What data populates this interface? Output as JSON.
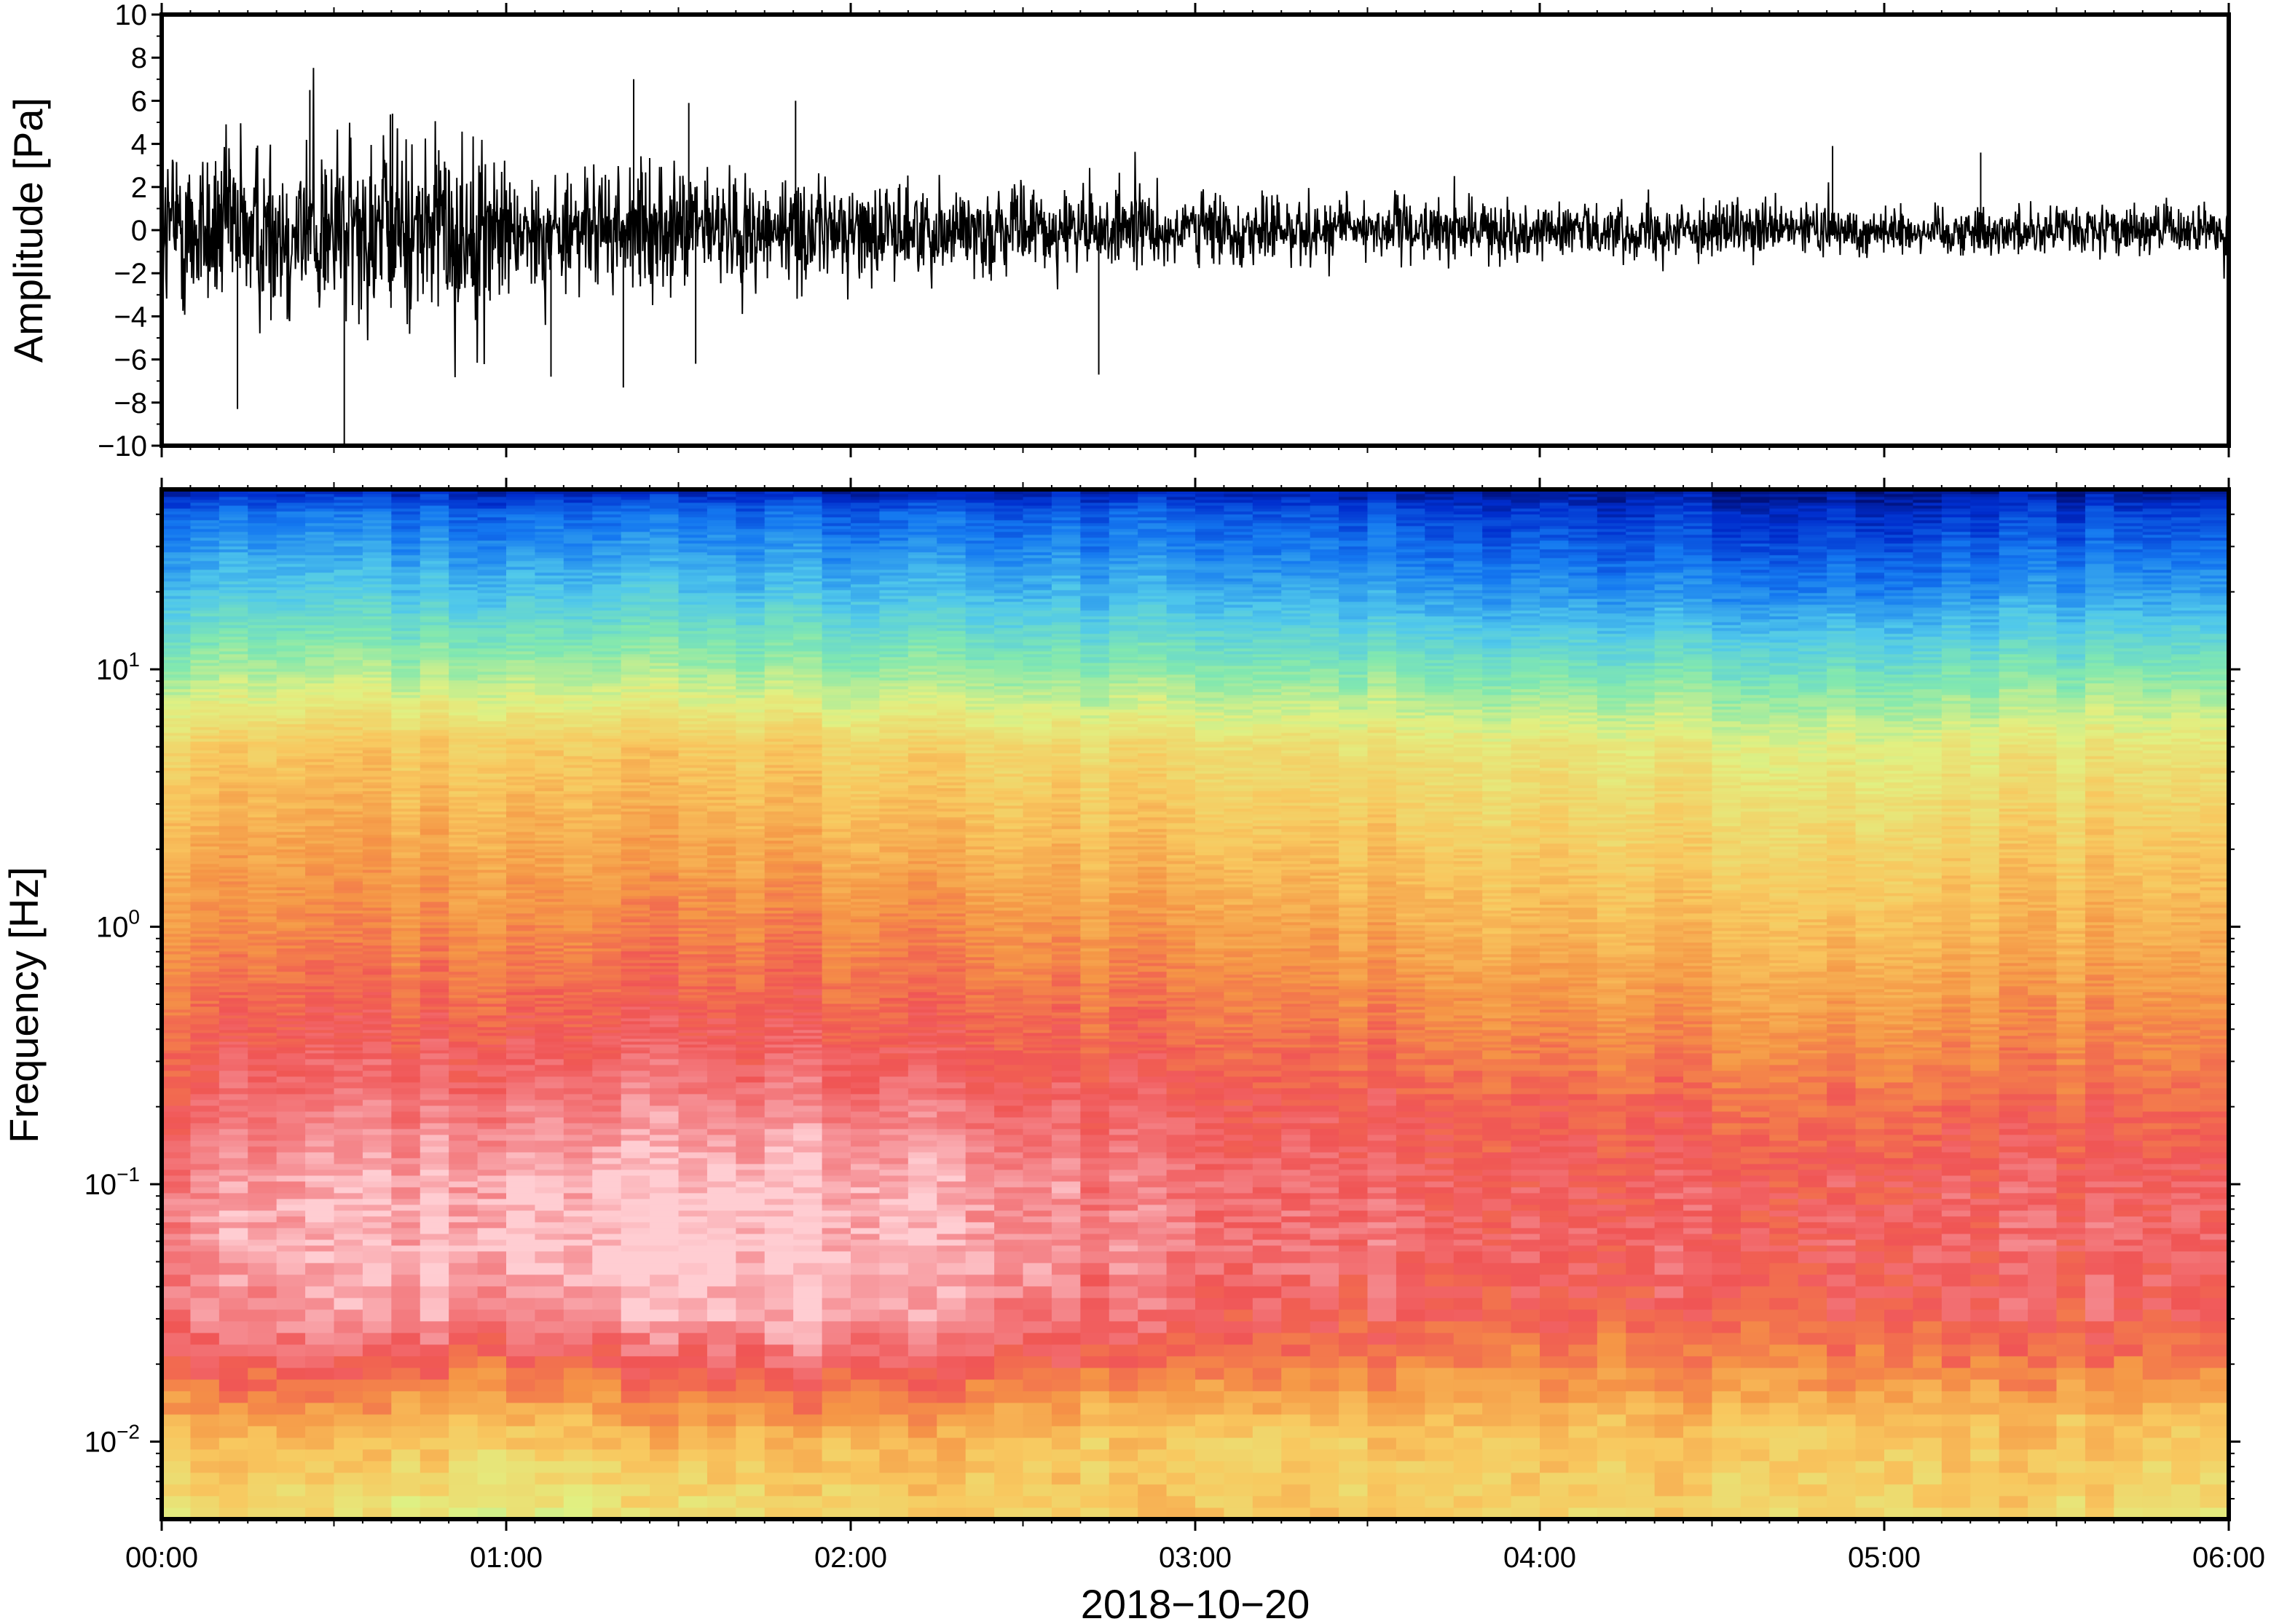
{
  "figure": {
    "date_label": "2018−10−20"
  },
  "chart_data": [
    {
      "type": "line",
      "panel": "waveform",
      "title": "",
      "xlabel": "2018−10−20",
      "ylabel": "Amplitude [Pa]",
      "x_ticks": [
        "00:00",
        "01:00",
        "02:00",
        "03:00",
        "04:00",
        "05:00",
        "06:00"
      ],
      "xlim": [
        "00:00",
        "06:00"
      ],
      "y_ticks": [
        10,
        8,
        6,
        4,
        2,
        0,
        -2,
        -4,
        -6,
        -8,
        -10
      ],
      "y_tick_labels": [
        "10",
        "8",
        "6",
        "4",
        "2",
        "0",
        "−2",
        "−4",
        "−6",
        "−8",
        "−10"
      ],
      "ylim": [
        -10,
        10
      ],
      "grid": false,
      "trace_color": "#000000",
      "envelope_hours": [
        0,
        0.25,
        0.5,
        0.75,
        1.0,
        1.01,
        1.25,
        1.5,
        1.75,
        2.0,
        2.5,
        3.0,
        3.5,
        4.0,
        4.5,
        5.0,
        5.5,
        6.0
      ],
      "envelope_pa": [
        3.6,
        3.8,
        4.0,
        3.9,
        3.7,
        2.2,
        2.4,
        2.5,
        2.3,
        2.0,
        1.7,
        1.5,
        1.3,
        1.1,
        1.1,
        1.0,
        1.0,
        1.0
      ],
      "spikes": [
        {
          "hour": 0.22,
          "pa": -8.3
        },
        {
          "hour": 0.53,
          "pa": -10.0
        },
        {
          "hour": 0.43,
          "pa": 6.5
        },
        {
          "hour": 0.67,
          "pa": 5.4
        },
        {
          "hour": 1.13,
          "pa": -6.8
        },
        {
          "hour": 1.37,
          "pa": 7.0
        },
        {
          "hour": 1.34,
          "pa": -7.3
        },
        {
          "hour": 1.53,
          "pa": 5.9
        },
        {
          "hour": 1.55,
          "pa": -6.2
        },
        {
          "hour": 1.84,
          "pa": 6.0
        },
        {
          "hour": 2.72,
          "pa": -6.7
        },
        {
          "hour": 4.85,
          "pa": 3.9
        },
        {
          "hour": 5.28,
          "pa": 3.6
        }
      ]
    },
    {
      "type": "heatmap",
      "panel": "spectrogram",
      "title": "",
      "xlabel": "2018−10−20",
      "ylabel": "Frequency [Hz]",
      "x_ticks": [
        "00:00",
        "01:00",
        "02:00",
        "03:00",
        "04:00",
        "05:00",
        "06:00"
      ],
      "xlim": [
        "00:00",
        "06:00"
      ],
      "y_scale": "log",
      "ylim_hz": [
        0.005,
        50
      ],
      "y_ticks_hz": [
        0.01,
        0.1,
        1,
        10
      ],
      "y_tick_labels": [
        {
          "base": "10",
          "exp": "−2"
        },
        {
          "base": "10",
          "exp": "−1"
        },
        {
          "base": "10",
          "exp": "0"
        },
        {
          "base": "10",
          "exp": "1"
        }
      ],
      "colormap": "rainbow",
      "colorbar": "none",
      "time_hours": [
        0,
        1,
        2,
        3,
        4,
        5,
        6
      ],
      "freq_hz": [
        0.005,
        0.01,
        0.02,
        0.03,
        0.05,
        0.1,
        0.2,
        0.5,
        1,
        2,
        5,
        10,
        20,
        40,
        50
      ],
      "relative_level": [
        [
          0.62,
          0.55,
          0.63,
          0.66,
          0.62,
          0.64,
          0.6
        ],
        [
          0.7,
          0.66,
          0.72,
          0.64,
          0.68,
          0.66,
          0.66
        ],
        [
          0.88,
          0.84,
          0.9,
          0.82,
          0.78,
          0.8,
          0.8
        ],
        [
          0.92,
          0.95,
          0.98,
          0.87,
          0.85,
          0.86,
          0.87
        ],
        [
          0.94,
          1.0,
          1.0,
          0.91,
          0.88,
          0.88,
          0.89
        ],
        [
          0.93,
          0.99,
          0.99,
          0.9,
          0.87,
          0.87,
          0.88
        ],
        [
          0.88,
          0.92,
          0.92,
          0.86,
          0.84,
          0.82,
          0.83
        ],
        [
          0.82,
          0.84,
          0.84,
          0.8,
          0.76,
          0.74,
          0.77
        ],
        [
          0.76,
          0.78,
          0.79,
          0.74,
          0.7,
          0.68,
          0.72
        ],
        [
          0.72,
          0.73,
          0.72,
          0.68,
          0.65,
          0.63,
          0.67
        ],
        [
          0.64,
          0.66,
          0.64,
          0.6,
          0.58,
          0.55,
          0.59
        ],
        [
          0.46,
          0.47,
          0.45,
          0.42,
          0.4,
          0.38,
          0.42
        ],
        [
          0.3,
          0.3,
          0.29,
          0.26,
          0.22,
          0.2,
          0.25
        ],
        [
          0.17,
          0.17,
          0.16,
          0.14,
          0.1,
          0.08,
          0.12
        ],
        [
          0.05,
          0.05,
          0.04,
          0.04,
          0.03,
          0.02,
          0.03
        ]
      ]
    }
  ]
}
